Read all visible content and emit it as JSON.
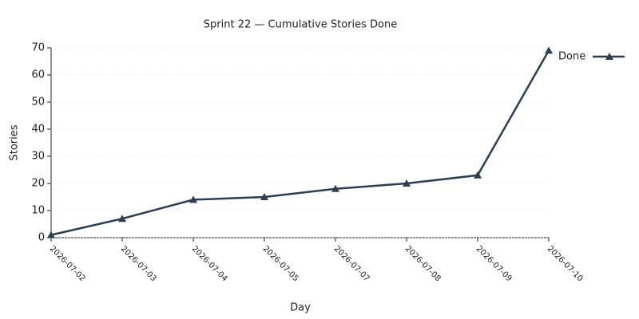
{
  "chart_data": {
    "type": "line",
    "title": "Sprint 22 — Cumulative Stories Done",
    "x_label": "Day",
    "y_label": "Stories",
    "categories": [
      "2026-07-02",
      "2026-07-03",
      "2026-07-04",
      "2026-07-05",
      "2026-07-07",
      "2026-07-08",
      "2026-07-09",
      "2026-07-10"
    ],
    "series": [
      {
        "name": "Done",
        "color": "#2c3e50",
        "values": [
          1,
          7,
          14,
          15,
          18,
          20,
          23,
          69
        ]
      }
    ],
    "ylim": [
      0,
      70
    ],
    "yticks": [
      0,
      10,
      20,
      30,
      40,
      50,
      60,
      70
    ],
    "grid": true,
    "legend": "right"
  }
}
